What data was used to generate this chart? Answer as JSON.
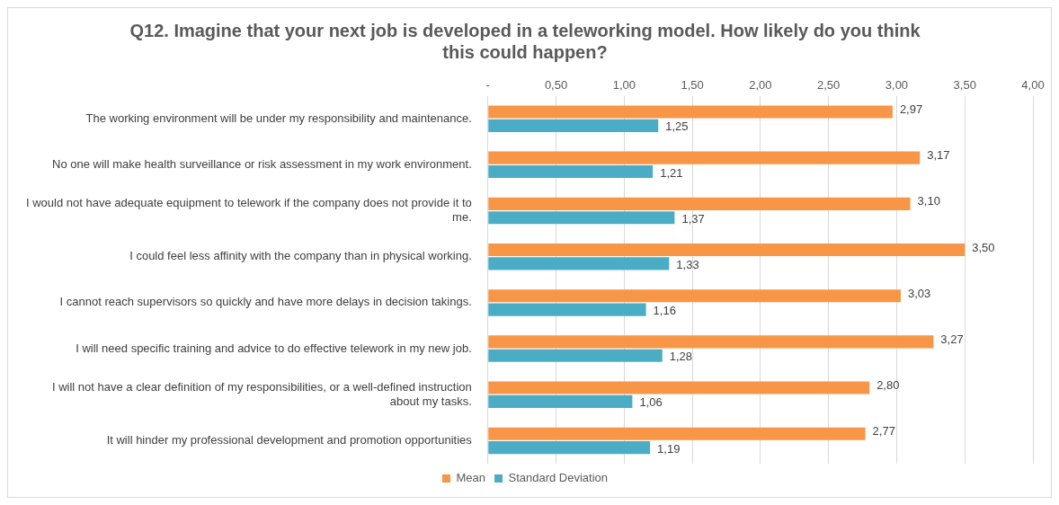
{
  "chart_data": {
    "type": "bar",
    "orientation": "horizontal",
    "title": "Q12. Imagine that your next job is developed in a teleworking model. How likely do you think this could happen?",
    "categories": [
      "The working environment will be under my responsibility and maintenance.",
      "No one will make health surveillance or risk assessment in my work environment.",
      "I would not have adequate equipment to telework if the company does not provide it to me.",
      "I could feel less affinity with the company than in physical working.",
      "I cannot reach supervisors so quickly and have more delays in decision takings.",
      "I will need specific training and advice to do effective telework in my new job.",
      "I will not have a clear definition of my responsibilities, or a well-defined instruction about my tasks.",
      "It will hinder my professional development and promotion opportunities"
    ],
    "series": [
      {
        "name": "Mean",
        "color": "#f79646",
        "values": [
          2.97,
          3.17,
          3.1,
          3.5,
          3.03,
          3.27,
          2.8,
          2.77
        ],
        "value_labels": [
          "2,97",
          "3,17",
          "3,10",
          "3,50",
          "3,03",
          "3,27",
          "2,80",
          "2,77"
        ]
      },
      {
        "name": "Standard Deviation",
        "color": "#4bacc6",
        "values": [
          1.25,
          1.21,
          1.37,
          1.33,
          1.16,
          1.28,
          1.06,
          1.19
        ],
        "value_labels": [
          "1,25",
          "1,21",
          "1,37",
          "1,33",
          "1,16",
          "1,28",
          "1,06",
          "1,19"
        ]
      }
    ],
    "xlim": [
      0,
      4
    ],
    "xticks": [
      {
        "value": 0,
        "label": "-"
      },
      {
        "value": 0.5,
        "label": "0,50"
      },
      {
        "value": 1,
        "label": "1,00"
      },
      {
        "value": 1.5,
        "label": "1,50"
      },
      {
        "value": 2,
        "label": "2,00"
      },
      {
        "value": 2.5,
        "label": "2,50"
      },
      {
        "value": 3,
        "label": "3,00"
      },
      {
        "value": 3.5,
        "label": "3,50"
      },
      {
        "value": 4,
        "label": "4,00"
      }
    ],
    "grid": "x",
    "legend": "bottom"
  }
}
